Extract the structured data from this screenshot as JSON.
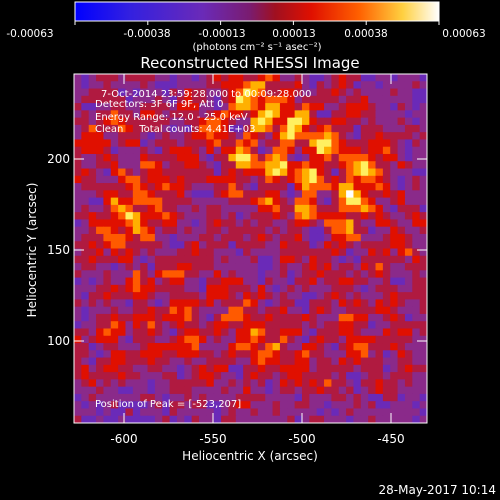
{
  "colorbar": {
    "tick_labels": [
      "-0.00063",
      "-0.00038",
      "-0.00013",
      "0.00013",
      "0.00038",
      "0.00063"
    ],
    "unit_label": "(photons cm⁻² s⁻¹ asec⁻²)",
    "colormap": [
      "#0000ff",
      "#3a24d8",
      "#6a2ab8",
      "#8a2a8a",
      "#b01a40",
      "#e01000",
      "#ff5a00",
      "#ffb000",
      "#fff060",
      "#ffffff"
    ]
  },
  "plot": {
    "title": "Reconstructed RHESSI Image",
    "xlabel": "Heliocentric X (arcsec)",
    "ylabel": "Heliocentric Y (arcsec)",
    "x_ticks": [
      "-600",
      "-550",
      "-500",
      "-450"
    ],
    "y_ticks": [
      "200",
      "150",
      "100"
    ],
    "xlim": [
      -625,
      -430
    ],
    "ylim": [
      55,
      235
    ]
  },
  "annotations": {
    "time_range": "7-Oct-2014 23:59:28.000 to 00:09:28.000",
    "detectors": "Detectors: 3F 6F 9F, Att 0",
    "energy_range": "Energy Range: 12.0 - 25.0 keV",
    "method_counts": "Clean     Total counts: 4.41E+03",
    "peak_position": "Position of Peak = [-523,207]"
  },
  "footer": {
    "date_stamp": "28-May-2017 10:14"
  }
}
